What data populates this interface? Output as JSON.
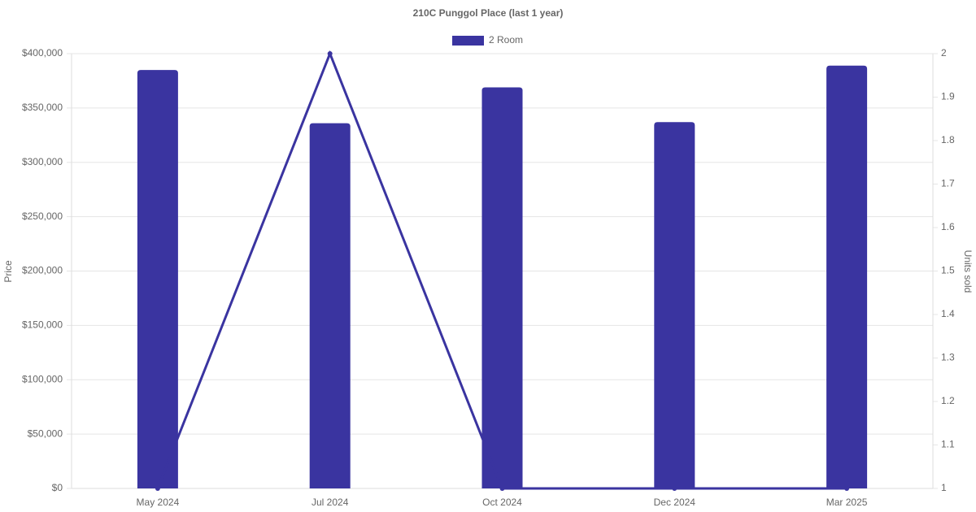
{
  "chart_data": {
    "type": "bar",
    "title": "210C Punggol Place (last 1 year)",
    "categories": [
      "May 2024",
      "Jul 2024",
      "Oct 2024",
      "Dec 2024",
      "Mar 2025"
    ],
    "series": [
      {
        "name": "2 Room",
        "type": "bar",
        "color": "#3a34a0",
        "values": [
          385000,
          336000,
          369000,
          337000,
          389000
        ]
      },
      {
        "type": "line",
        "axis": "y2",
        "color": "#3a34a0",
        "values": [
          1,
          2,
          1,
          1,
          1
        ]
      }
    ],
    "ylabel": "Price",
    "y2label": "Units sold",
    "ylim": [
      0,
      400000
    ],
    "yticks": [
      {
        "value": 0,
        "label": "$0"
      },
      {
        "value": 50000,
        "label": "$50,000"
      },
      {
        "value": 100000,
        "label": "$100,000"
      },
      {
        "value": 150000,
        "label": "$150,000"
      },
      {
        "value": 200000,
        "label": "$200,000"
      },
      {
        "value": 250000,
        "label": "$250,000"
      },
      {
        "value": 300000,
        "label": "$300,000"
      },
      {
        "value": 350000,
        "label": "$350,000"
      },
      {
        "value": 400000,
        "label": "$400,000"
      }
    ],
    "y2lim": [
      1,
      2
    ],
    "y2ticks": [
      1,
      1.1,
      1.2,
      1.3,
      1.4,
      1.5,
      1.6,
      1.7,
      1.8,
      1.9,
      2
    ],
    "grid": true,
    "legend": "top"
  }
}
